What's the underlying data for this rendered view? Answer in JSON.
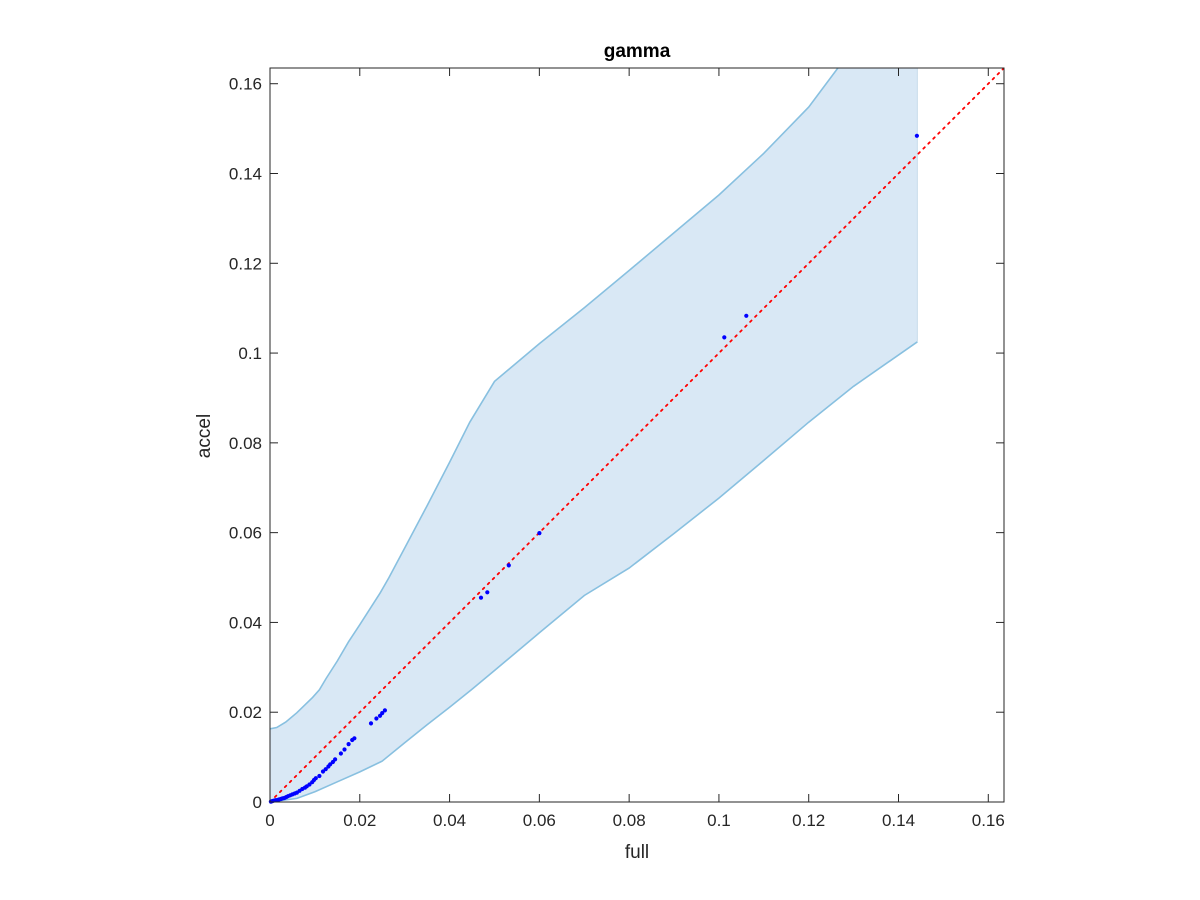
{
  "chart_data": {
    "type": "scatter",
    "title": "gamma",
    "xlabel": "full",
    "ylabel": "accel",
    "xlim": [
      0,
      0.1635
    ],
    "ylim": [
      0,
      0.1635
    ],
    "xticks": [
      0,
      0.02,
      0.04,
      0.06,
      0.08,
      0.1,
      0.12,
      0.14,
      0.16
    ],
    "xtick_labels": [
      "0",
      "0.02",
      "0.04",
      "0.06",
      "0.08",
      "0.1",
      "0.12",
      "0.14",
      "0.16"
    ],
    "yticks": [
      0,
      0.02,
      0.04,
      0.06,
      0.08,
      0.1,
      0.12,
      0.14,
      0.16
    ],
    "ytick_labels": [
      "0",
      "0.02",
      "0.04",
      "0.06",
      "0.08",
      "0.1",
      "0.12",
      "0.14",
      "0.16"
    ],
    "grid": false,
    "band": {
      "color": "#d9e8f5",
      "edge_color": "#88c0e0",
      "upper": [
        [
          0,
          0.0163
        ],
        [
          0.0015,
          0.0166
        ],
        [
          0.0035,
          0.0178
        ],
        [
          0.006,
          0.0199
        ],
        [
          0.0095,
          0.0233
        ],
        [
          0.011,
          0.025
        ],
        [
          0.0125,
          0.0275
        ],
        [
          0.015,
          0.0314
        ],
        [
          0.0175,
          0.0357
        ],
        [
          0.02,
          0.0395
        ],
        [
          0.0245,
          0.0465
        ],
        [
          0.0265,
          0.05
        ],
        [
          0.0305,
          0.0575
        ],
        [
          0.035,
          0.066
        ],
        [
          0.04,
          0.0757
        ],
        [
          0.0445,
          0.0846
        ],
        [
          0.05,
          0.0937
        ],
        [
          0.06,
          0.1021
        ],
        [
          0.07,
          0.1101
        ],
        [
          0.08,
          0.1184
        ],
        [
          0.09,
          0.1268
        ],
        [
          0.1,
          0.1352
        ],
        [
          0.11,
          0.1445
        ],
        [
          0.12,
          0.1548
        ],
        [
          0.1265,
          0.1635
        ]
      ],
      "lower": [
        [
          0,
          0
        ],
        [
          0.006,
          0.0008
        ],
        [
          0.01,
          0.0023
        ],
        [
          0.015,
          0.0045
        ],
        [
          0.02,
          0.0067
        ],
        [
          0.025,
          0.0091
        ],
        [
          0.03,
          0.0132
        ],
        [
          0.035,
          0.0172
        ],
        [
          0.04,
          0.0211
        ],
        [
          0.045,
          0.0251
        ],
        [
          0.05,
          0.0293
        ],
        [
          0.06,
          0.0377
        ],
        [
          0.07,
          0.046
        ],
        [
          0.08,
          0.0521
        ],
        [
          0.09,
          0.0598
        ],
        [
          0.1,
          0.0677
        ],
        [
          0.11,
          0.0761
        ],
        [
          0.12,
          0.0846
        ],
        [
          0.13,
          0.0926
        ],
        [
          0.1442,
          0.1025
        ]
      ],
      "x_end": 0.1442
    },
    "reference_line": {
      "style": "dotted",
      "color": "#ff0000",
      "from": [
        0,
        0
      ],
      "to": [
        0.1635,
        0.1635
      ]
    },
    "series": [
      {
        "color": "#0000ff",
        "points": [
          [
            0.0002,
            0.0001
          ],
          [
            0.0005,
            0.0002
          ],
          [
            0.0008,
            0.0003
          ],
          [
            0.0012,
            0.0004
          ],
          [
            0.0015,
            0.0004
          ],
          [
            0.0018,
            0.0005
          ],
          [
            0.0021,
            0.0006
          ],
          [
            0.0025,
            0.0007
          ],
          [
            0.0028,
            0.0008
          ],
          [
            0.0032,
            0.0009
          ],
          [
            0.0036,
            0.0011
          ],
          [
            0.004,
            0.0013
          ],
          [
            0.0045,
            0.0015
          ],
          [
            0.005,
            0.0017
          ],
          [
            0.0055,
            0.0019
          ],
          [
            0.006,
            0.0021
          ],
          [
            0.0066,
            0.0025
          ],
          [
            0.0072,
            0.0029
          ],
          [
            0.0078,
            0.0032
          ],
          [
            0.0082,
            0.0035
          ],
          [
            0.0088,
            0.0039
          ],
          [
            0.0094,
            0.0044
          ],
          [
            0.0098,
            0.0049
          ],
          [
            0.0102,
            0.0053
          ],
          [
            0.011,
            0.0058
          ],
          [
            0.0118,
            0.0068
          ],
          [
            0.0124,
            0.0073
          ],
          [
            0.013,
            0.0079
          ],
          [
            0.0134,
            0.0084
          ],
          [
            0.014,
            0.0089
          ],
          [
            0.0145,
            0.0095
          ],
          [
            0.0158,
            0.0108
          ],
          [
            0.0166,
            0.0117
          ],
          [
            0.0175,
            0.0129
          ],
          [
            0.0183,
            0.0138
          ],
          [
            0.0188,
            0.0142
          ],
          [
            0.0225,
            0.0175
          ],
          [
            0.0237,
            0.0186
          ],
          [
            0.0245,
            0.0192
          ],
          [
            0.025,
            0.0198
          ],
          [
            0.0256,
            0.0204
          ],
          [
            0.047,
            0.0455
          ],
          [
            0.0484,
            0.0467
          ],
          [
            0.0532,
            0.0527
          ],
          [
            0.06,
            0.0599
          ],
          [
            0.1012,
            0.1035
          ],
          [
            0.1061,
            0.1083
          ],
          [
            0.1441,
            0.1484
          ]
        ]
      }
    ]
  }
}
